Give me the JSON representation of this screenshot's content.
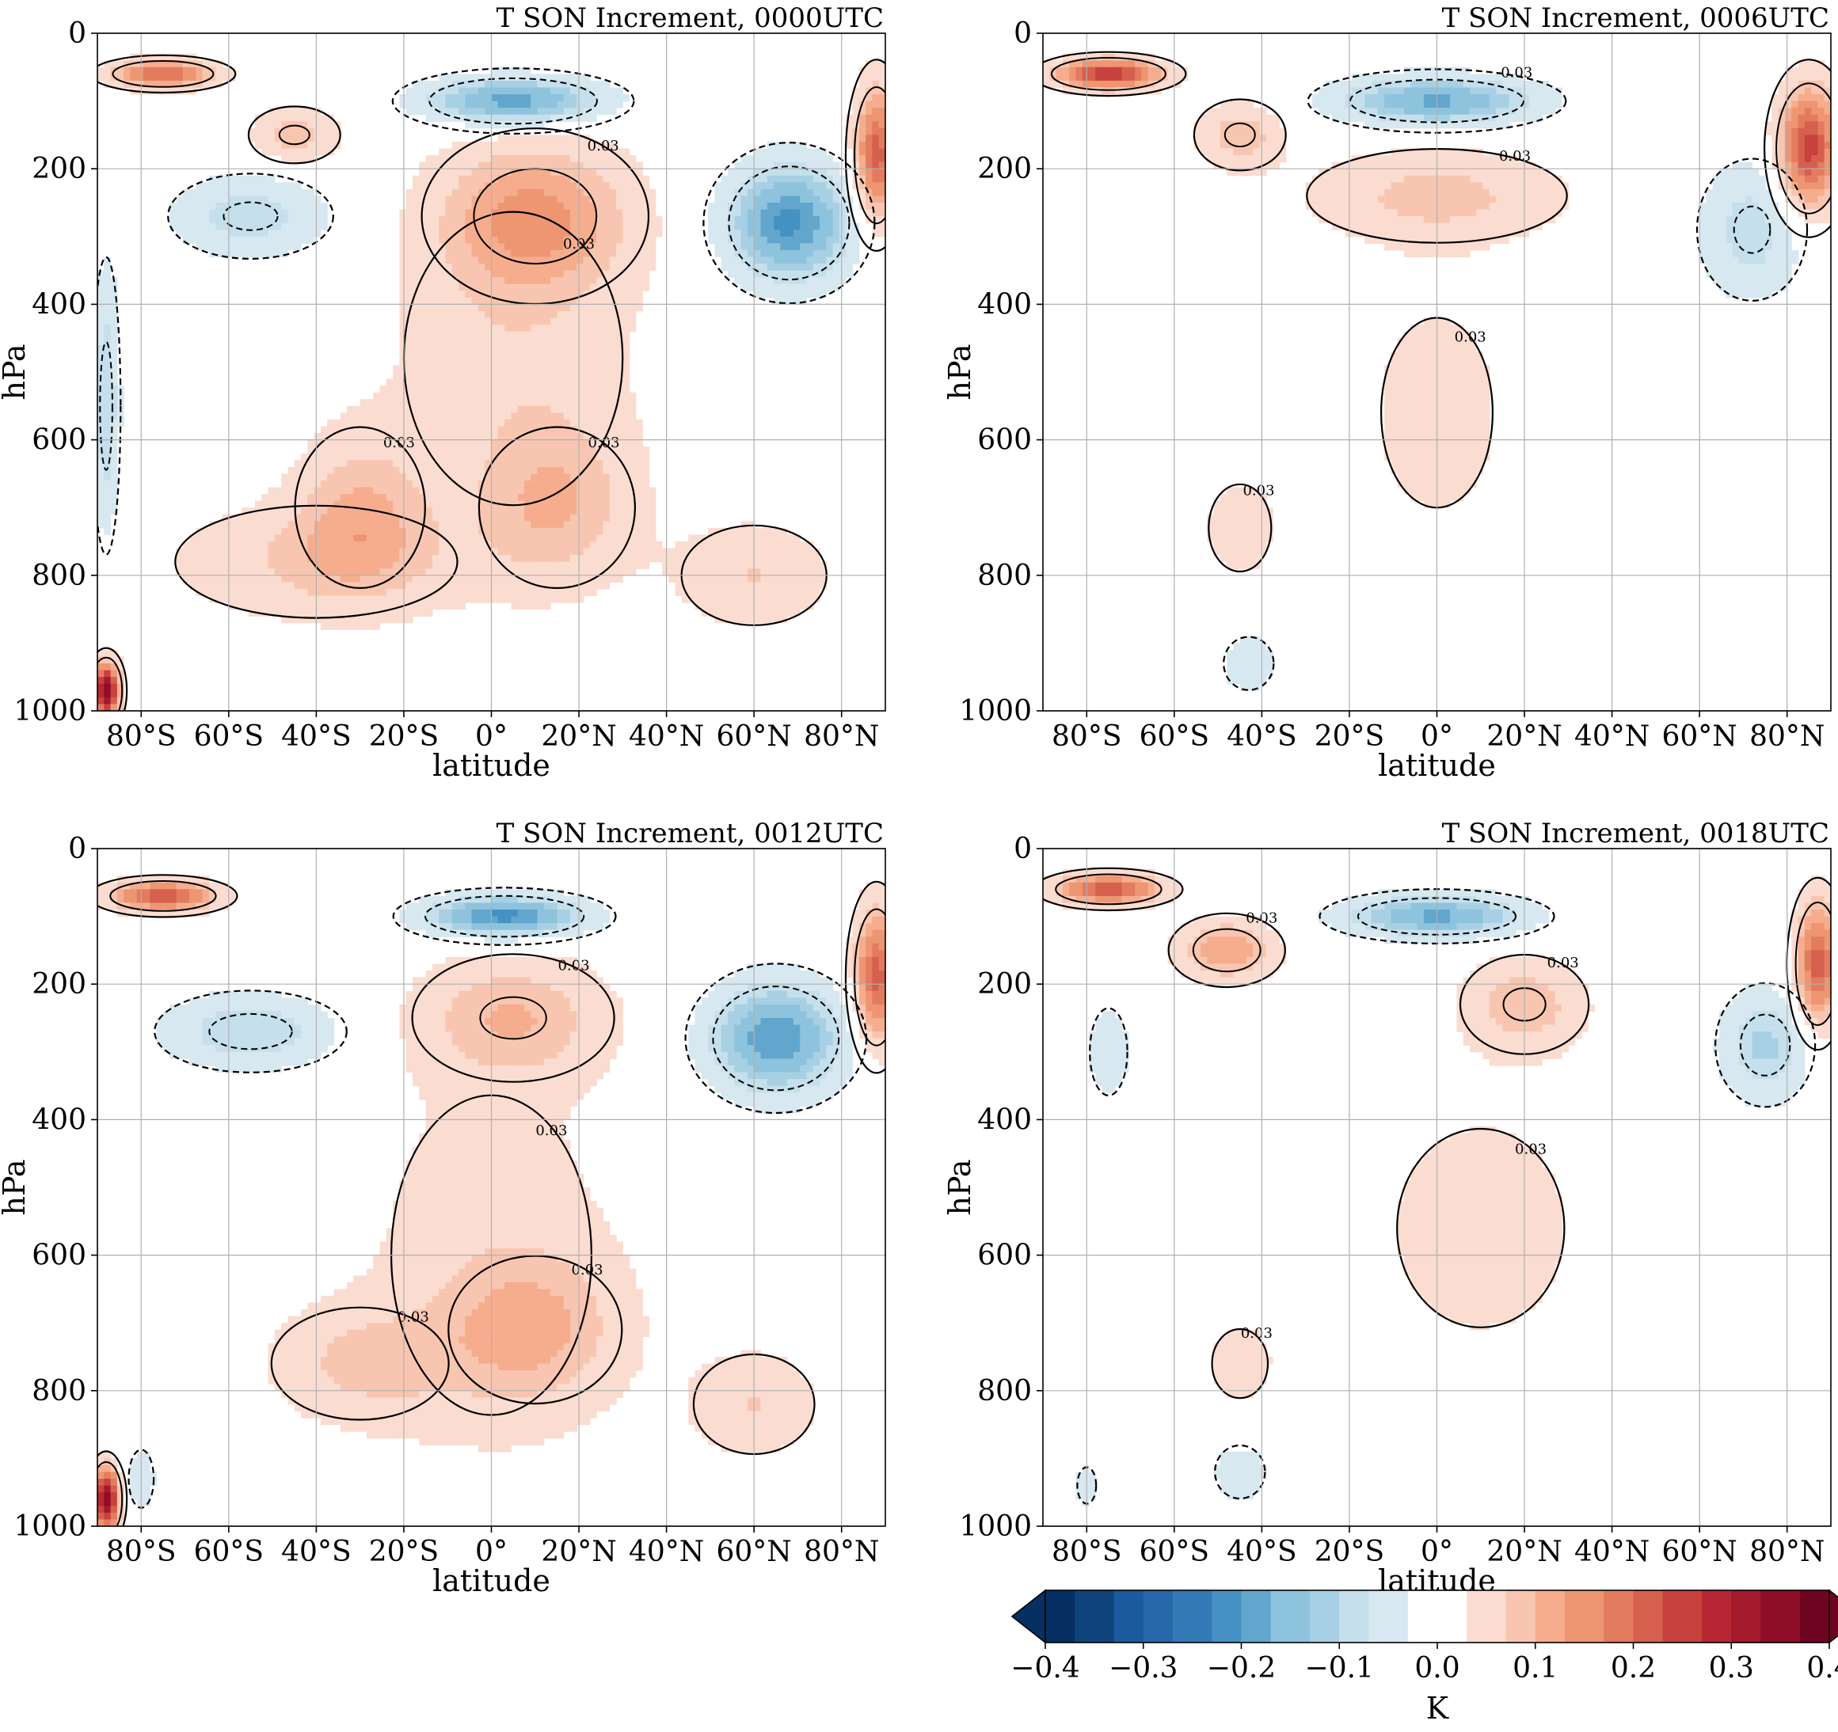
{
  "chart_data": [
    {
      "type": "heatmap",
      "title": "T SON Increment, 0000UTC",
      "xlabel": "latitude",
      "ylabel": "hPa",
      "xlim": [
        -90,
        90
      ],
      "ylim": [
        1000,
        0
      ],
      "xticks": [
        -80,
        -60,
        -40,
        -20,
        0,
        20,
        40,
        60,
        80
      ],
      "xtick_labels": [
        "80°S",
        "60°S",
        "40°S",
        "20°S",
        "0°",
        "20°N",
        "40°N",
        "60°N",
        "80°N"
      ],
      "yticks": [
        0,
        200,
        400,
        600,
        800,
        1000
      ],
      "ytick_labels": [
        "0",
        "200",
        "400",
        "600",
        "800",
        "1000"
      ],
      "grid": true,
      "features": [
        {
          "lat": 10,
          "p": 270,
          "value": 0.12,
          "slat": 22,
          "sp": 110
        },
        {
          "lat": 5,
          "p": 480,
          "value": 0.06,
          "slat": 30,
          "sp": 260
        },
        {
          "lat": -30,
          "p": 700,
          "value": 0.08,
          "slat": 15,
          "sp": 120
        },
        {
          "lat": 15,
          "p": 700,
          "value": 0.08,
          "slat": 18,
          "sp": 120
        },
        {
          "lat": -40,
          "p": 780,
          "value": 0.07,
          "slat": 35,
          "sp": 90
        },
        {
          "lat": 60,
          "p": 800,
          "value": 0.07,
          "slat": 18,
          "sp": 80
        },
        {
          "lat": 5,
          "p": 100,
          "value": -0.2,
          "slat": 20,
          "sp": 35
        },
        {
          "lat": 68,
          "p": 280,
          "value": -0.21,
          "slat": 14,
          "sp": 85
        },
        {
          "lat": -55,
          "p": 270,
          "value": -0.09,
          "slat": 18,
          "sp": 60
        },
        {
          "lat": -75,
          "p": 60,
          "value": 0.2,
          "slat": 12,
          "sp": 20
        },
        {
          "lat": 88,
          "p": 180,
          "value": 0.22,
          "slat": 5,
          "sp": 100
        },
        {
          "lat": -45,
          "p": 150,
          "value": 0.09,
          "slat": 10,
          "sp": 40
        },
        {
          "lat": -88,
          "p": 970,
          "value": 0.35,
          "slat": 3,
          "sp": 40
        },
        {
          "lat": -88,
          "p": 550,
          "value": -0.1,
          "slat": 3,
          "sp": 200
        }
      ]
    },
    {
      "type": "heatmap",
      "title": "T SON Increment, 0006UTC",
      "xlabel": "latitude",
      "ylabel": "hPa",
      "xlim": [
        -90,
        90
      ],
      "ylim": [
        1000,
        0
      ],
      "xticks": [
        -80,
        -60,
        -40,
        -20,
        0,
        20,
        40,
        60,
        80
      ],
      "xtick_labels": [
        "80°S",
        "60°S",
        "40°S",
        "20°S",
        "0°",
        "20°N",
        "40°N",
        "60°N",
        "80°N"
      ],
      "yticks": [
        0,
        200,
        400,
        600,
        800,
        1000
      ],
      "ytick_labels": [
        "0",
        "200",
        "400",
        "600",
        "800",
        "1000"
      ],
      "grid": true,
      "features": [
        {
          "lat": 0,
          "p": 240,
          "value": 0.08,
          "slat": 30,
          "sp": 70
        },
        {
          "lat": 0,
          "p": 560,
          "value": 0.045,
          "slat": 20,
          "sp": 220
        },
        {
          "lat": -45,
          "p": 730,
          "value": 0.05,
          "slat": 10,
          "sp": 90
        },
        {
          "lat": 0,
          "p": 100,
          "value": -0.18,
          "slat": 22,
          "sp": 35
        },
        {
          "lat": 72,
          "p": 290,
          "value": -0.09,
          "slat": 12,
          "sp": 100
        },
        {
          "lat": -43,
          "p": 930,
          "value": -0.05,
          "slat": 8,
          "sp": 55
        },
        {
          "lat": -45,
          "p": 150,
          "value": 0.09,
          "slat": 10,
          "sp": 50
        },
        {
          "lat": -75,
          "p": 60,
          "value": 0.26,
          "slat": 12,
          "sp": 22
        },
        {
          "lat": 85,
          "p": 170,
          "value": 0.25,
          "slat": 7,
          "sp": 90
        }
      ]
    },
    {
      "type": "heatmap",
      "title": "T SON Increment, 0012UTC",
      "xlabel": "latitude",
      "ylabel": "hPa",
      "xlim": [
        -90,
        90
      ],
      "ylim": [
        1000,
        0
      ],
      "xticks": [
        -80,
        -60,
        -40,
        -20,
        0,
        20,
        40,
        60,
        80
      ],
      "xtick_labels": [
        "80°S",
        "60°S",
        "40°S",
        "20°S",
        "0°",
        "20°N",
        "40°N",
        "60°N",
        "80°N"
      ],
      "yticks": [
        0,
        200,
        400,
        600,
        800,
        1000
      ],
      "ytick_labels": [
        "0",
        "200",
        "400",
        "600",
        "800",
        "1000"
      ],
      "grid": true,
      "features": [
        {
          "lat": 5,
          "p": 250,
          "value": 0.09,
          "slat": 22,
          "sp": 90
        },
        {
          "lat": 0,
          "p": 600,
          "value": 0.05,
          "slat": 32,
          "sp": 330
        },
        {
          "lat": 10,
          "p": 710,
          "value": 0.08,
          "slat": 20,
          "sp": 110
        },
        {
          "lat": -30,
          "p": 760,
          "value": 0.07,
          "slat": 22,
          "sp": 90
        },
        {
          "lat": 60,
          "p": 820,
          "value": 0.07,
          "slat": 15,
          "sp": 80
        },
        {
          "lat": 3,
          "p": 100,
          "value": -0.22,
          "slat": 18,
          "sp": 30
        },
        {
          "lat": 65,
          "p": 280,
          "value": -0.2,
          "slat": 15,
          "sp": 80
        },
        {
          "lat": -55,
          "p": 270,
          "value": -0.1,
          "slat": 20,
          "sp": 55
        },
        {
          "lat": -75,
          "p": 70,
          "value": 0.22,
          "slat": 12,
          "sp": 22
        },
        {
          "lat": 88,
          "p": 190,
          "value": 0.22,
          "slat": 5,
          "sp": 100
        },
        {
          "lat": -88,
          "p": 960,
          "value": 0.35,
          "slat": 3,
          "sp": 45
        },
        {
          "lat": -80,
          "p": 930,
          "value": -0.05,
          "slat": 4,
          "sp": 60
        }
      ]
    },
    {
      "type": "heatmap",
      "title": "T SON Increment, 0018UTC",
      "xlabel": "latitude",
      "ylabel": "hPa",
      "xlim": [
        -90,
        90
      ],
      "ylim": [
        1000,
        0
      ],
      "xticks": [
        -80,
        -60,
        -40,
        -20,
        0,
        20,
        40,
        60,
        80
      ],
      "xtick_labels": [
        "80°S",
        "60°S",
        "40°S",
        "20°S",
        "0°",
        "20°N",
        "40°N",
        "60°N",
        "80°N"
      ],
      "yticks": [
        0,
        200,
        400,
        600,
        800,
        1000
      ],
      "ytick_labels": [
        "0",
        "200",
        "400",
        "600",
        "800",
        "1000"
      ],
      "grid": true,
      "features": [
        {
          "lat": 20,
          "p": 230,
          "value": 0.09,
          "slat": 14,
          "sp": 70
        },
        {
          "lat": -48,
          "p": 150,
          "value": 0.13,
          "slat": 11,
          "sp": 45
        },
        {
          "lat": 10,
          "p": 560,
          "value": 0.045,
          "slat": 30,
          "sp": 230
        },
        {
          "lat": -45,
          "p": 760,
          "value": 0.045,
          "slat": 10,
          "sp": 80
        },
        {
          "lat": 0,
          "p": 100,
          "value": -0.18,
          "slat": 20,
          "sp": 30
        },
        {
          "lat": 75,
          "p": 290,
          "value": -0.11,
          "slat": 10,
          "sp": 80
        },
        {
          "lat": -75,
          "p": 300,
          "value": -0.05,
          "slat": 6,
          "sp": 90
        },
        {
          "lat": -45,
          "p": 920,
          "value": -0.05,
          "slat": 8,
          "sp": 55
        },
        {
          "lat": -80,
          "p": 940,
          "value": -0.04,
          "slat": 4,
          "sp": 50
        },
        {
          "lat": -75,
          "p": 60,
          "value": 0.22,
          "slat": 12,
          "sp": 22
        },
        {
          "lat": 87,
          "p": 170,
          "value": 0.22,
          "slat": 5,
          "sp": 90
        }
      ]
    }
  ],
  "colorbar": {
    "label": "K",
    "vmin": -0.4,
    "vmax": 0.4,
    "extend": "both",
    "ticks": [
      -0.4,
      -0.3,
      -0.2,
      -0.1,
      0.0,
      0.1,
      0.2,
      0.3,
      0.4
    ],
    "tick_labels": [
      "−0.4",
      "−0.3",
      "−0.2",
      "−0.1",
      "0.0",
      "0.1",
      "0.2",
      "0.3",
      "0.4"
    ],
    "levels": [
      -0.4,
      -0.37,
      -0.33,
      -0.3,
      -0.27,
      -0.23,
      -0.2,
      -0.17,
      -0.13,
      -0.1,
      -0.07,
      -0.03,
      0.03,
      0.07,
      0.1,
      0.13,
      0.17,
      0.2,
      0.23,
      0.27,
      0.3,
      0.33,
      0.37,
      0.4
    ],
    "colors": [
      "#053061",
      "#0f437b",
      "#1b5a9c",
      "#2668aa",
      "#3279b6",
      "#4591c3",
      "#63a6cd",
      "#8ec3dd",
      "#a8d0e4",
      "#c5dfec",
      "#d8e8f1",
      "#ffffff",
      "#fbdcd0",
      "#f8c6b0",
      "#f5ad8e",
      "#ee9572",
      "#e37b5e",
      "#d5604e",
      "#c7413d",
      "#b72733",
      "#a31a2d",
      "#8e0e27",
      "#6f0421"
    ]
  },
  "contour_label_text": "0.03"
}
